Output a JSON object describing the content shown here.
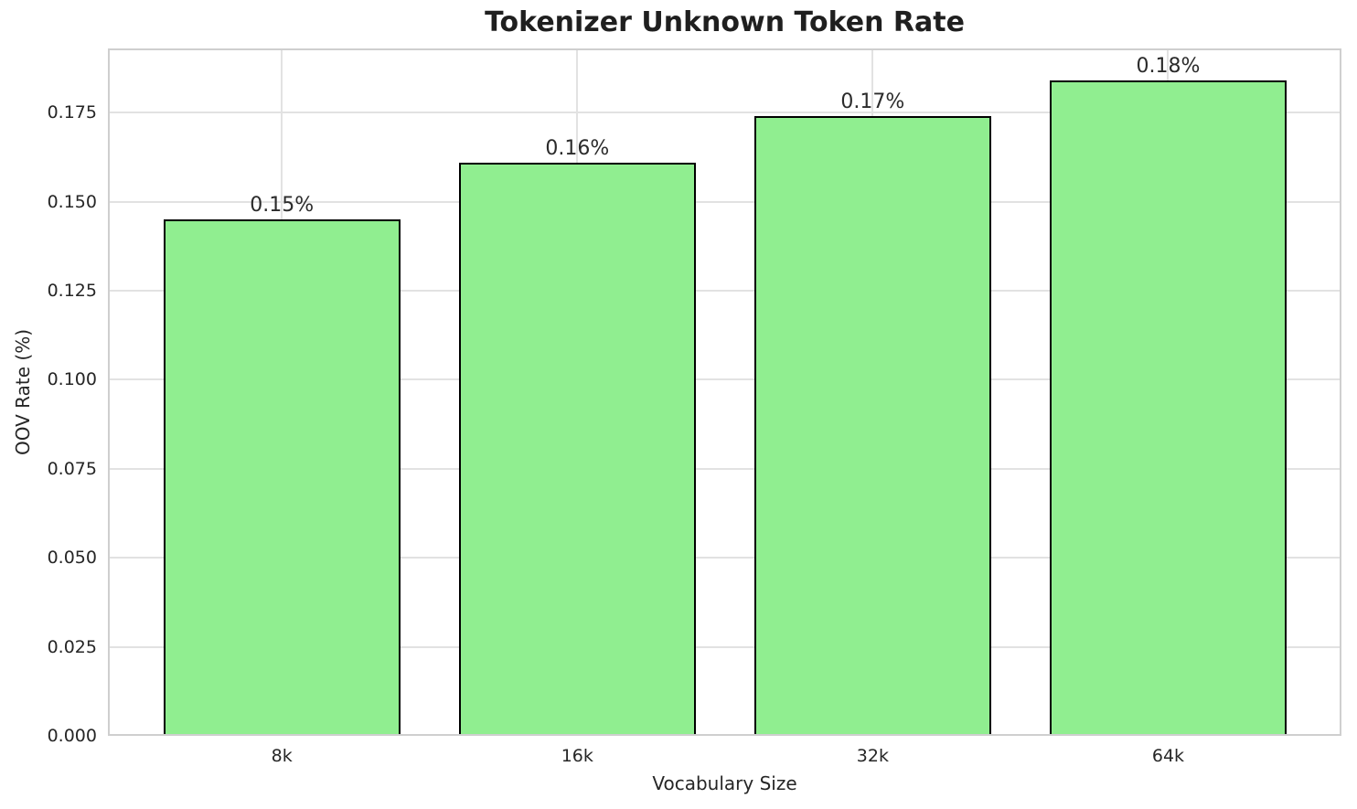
{
  "chart_data": {
    "type": "bar",
    "title": "Tokenizer Unknown Token Rate",
    "xlabel": "Vocabulary Size",
    "ylabel": "OOV Rate (%)",
    "categories": [
      "8k",
      "16k",
      "32k",
      "64k"
    ],
    "values": [
      0.145,
      0.161,
      0.174,
      0.184
    ],
    "bar_labels": [
      "0.15%",
      "0.16%",
      "0.17%",
      "0.18%"
    ],
    "ylim": [
      0,
      0.193
    ],
    "yticks": [
      0,
      0.025,
      0.05,
      0.075,
      0.1,
      0.125,
      0.15,
      0.175
    ],
    "ytick_labels": [
      "0.000",
      "0.025",
      "0.050",
      "0.075",
      "0.100",
      "0.125",
      "0.150",
      "0.175"
    ],
    "grid": true,
    "legend": null,
    "colors": {
      "bar_fill": "#90EE90",
      "bar_edge": "#000000",
      "grid": "#e2e2e2",
      "spine": "#cfcfcf",
      "text": "#262626",
      "background": "#ffffff"
    }
  }
}
